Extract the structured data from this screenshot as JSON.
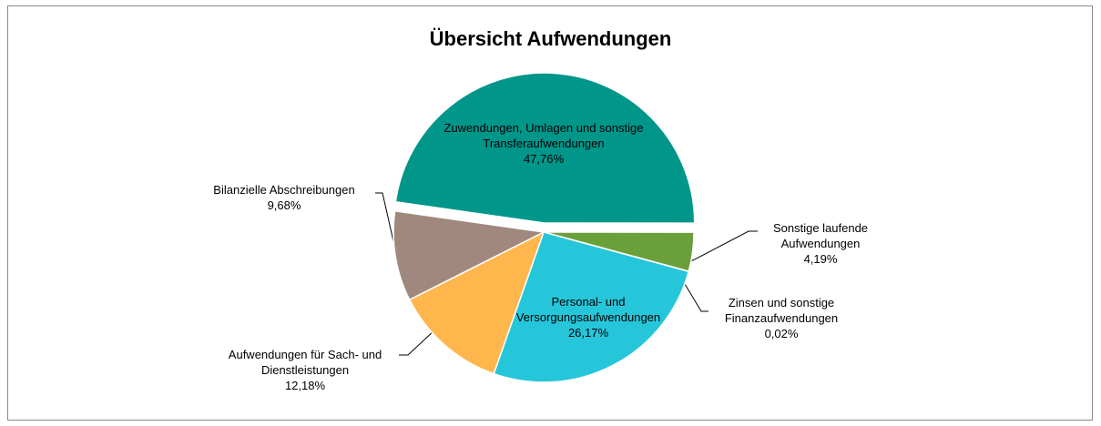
{
  "chart_data": {
    "type": "pie",
    "title": "Übersicht Aufwendungen",
    "categories": [
      "Zuwendungen, Umlagen und sonstige Transferaufwendungen",
      "Sonstige laufende Aufwendungen",
      "Zinsen und sonstige Finanzaufwendungen",
      "Personal- und Versorgungsaufwendungen",
      "Aufwendungen für Sach- und Dienstleistungen",
      "Bilanzielle Abschreibungen"
    ],
    "values": [
      47.76,
      4.19,
      0.02,
      26.17,
      12.18,
      9.68
    ],
    "value_labels": [
      "47,76%",
      "4,19%",
      "0,02%",
      "26,17%",
      "12,18%",
      "9,68%"
    ],
    "colors": [
      "#00968a",
      "#6a9f3a",
      "#3a7fc0",
      "#26c6da",
      "#ffb74d",
      "#a1887f"
    ]
  }
}
